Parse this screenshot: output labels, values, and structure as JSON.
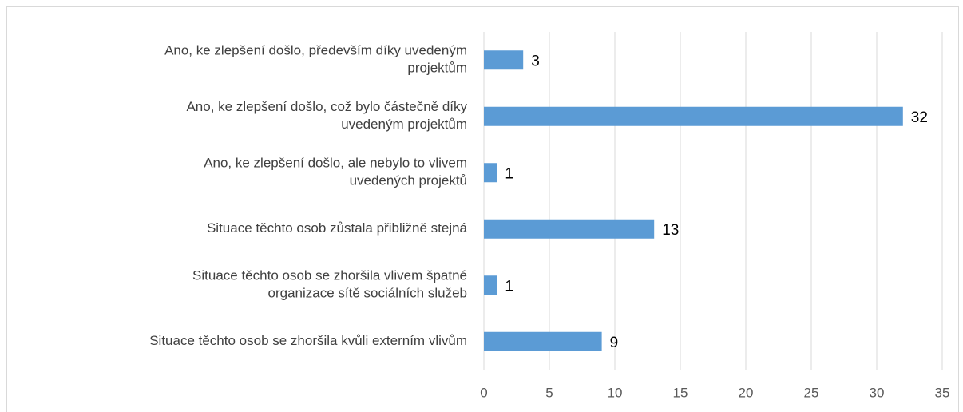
{
  "chart_data": {
    "type": "bar",
    "orientation": "horizontal",
    "categories": [
      [
        "Ano, ke zlepšení došlo, především díky uvedeným",
        "projektům"
      ],
      [
        "Ano, ke zlepšení došlo, což bylo částečně díky",
        "uvedeným projektům"
      ],
      [
        "Ano, ke zlepšení došlo, ale nebylo to vlivem",
        "uvedených projektů"
      ],
      [
        "Situace těchto osob zůstala přibližně stejná"
      ],
      [
        "Situace těchto osob se zhoršila vlivem špatné",
        "organizace sítě sociálních služeb"
      ],
      [
        "Situace těchto osob se zhoršila kvůli externím vlivům"
      ]
    ],
    "values": [
      3,
      32,
      1,
      13,
      1,
      9
    ],
    "color": "#5b9bd5",
    "xlim": [
      0,
      35
    ],
    "xticks": [
      0,
      5,
      10,
      15,
      20,
      25,
      30,
      35
    ],
    "grid": true
  }
}
